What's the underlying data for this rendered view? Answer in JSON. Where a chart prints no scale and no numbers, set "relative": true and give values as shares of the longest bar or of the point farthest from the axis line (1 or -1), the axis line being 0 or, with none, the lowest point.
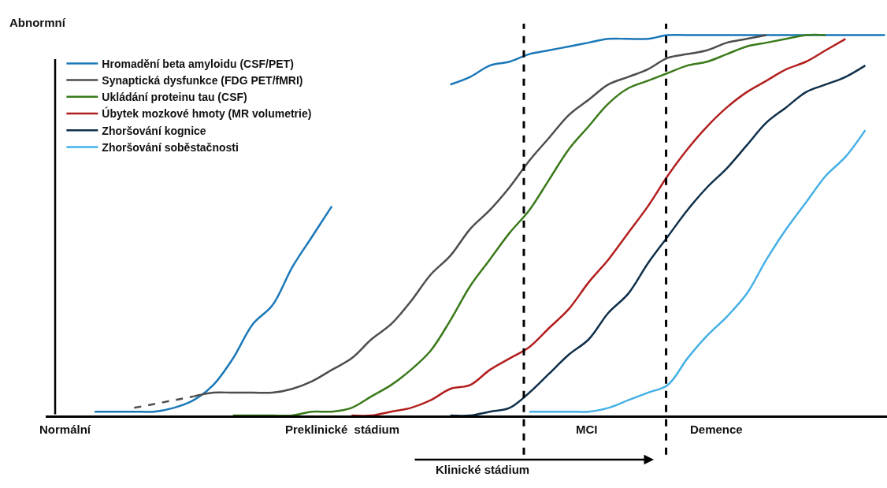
{
  "chart_data": {
    "type": "line",
    "relative": true,
    "ylabel": "Abnormní",
    "categories": [
      null,
      null,
      null,
      null,
      null,
      null,
      null,
      null,
      null,
      null,
      null,
      null,
      null,
      null,
      null,
      null,
      null,
      null,
      null,
      null,
      null,
      null,
      null,
      null,
      null,
      null,
      null,
      null,
      null,
      null,
      null,
      null,
      null,
      null,
      null,
      null,
      null,
      null,
      null,
      null,
      null,
      null,
      null
    ],
    "series": [
      {
        "name": "Hromadění beta amyloidu (CSF/PET)",
        "color": "#1a78b8",
        "values": [
          null,
          null,
          0.01,
          0.01,
          0.01,
          0.01,
          0.02,
          0.04,
          0.08,
          0.15,
          0.24,
          0.29,
          0.39,
          0.47,
          0.55,
          null,
          null,
          null,
          null,
          null,
          0.87,
          0.89,
          0.92,
          0.93,
          0.95,
          0.96,
          0.97,
          0.98,
          0.99,
          0.99,
          0.99,
          1.0,
          1.0,
          1.0,
          1.0,
          1.0,
          1.0,
          1.0,
          1.0,
          1.0,
          1.0,
          1.0,
          1.0
        ]
      },
      {
        "name": "Synaptická dysfunkce (FDG PET/fMRI)",
        "color": "#4d4d4f",
        "values": [
          null,
          null,
          null,
          null,
          null,
          null,
          null,
          0.05,
          0.06,
          0.06,
          0.06,
          0.06,
          0.07,
          0.09,
          0.12,
          0.15,
          0.2,
          0.24,
          0.3,
          0.37,
          0.42,
          0.49,
          0.54,
          0.6,
          0.67,
          0.73,
          0.79,
          0.83,
          0.87,
          0.89,
          0.91,
          0.94,
          0.95,
          0.96,
          0.98,
          0.99,
          1.0,
          null,
          null,
          null,
          null,
          null,
          null
        ]
      },
      {
        "name": "Ukládání proteinu tau (CSF)",
        "color": "#3a7a1a",
        "values": [
          null,
          null,
          null,
          null,
          null,
          null,
          null,
          null,
          null,
          0.0,
          0.0,
          0.0,
          0.0,
          0.01,
          0.01,
          0.02,
          0.05,
          0.08,
          0.12,
          0.17,
          0.25,
          0.34,
          0.41,
          0.48,
          0.54,
          0.62,
          0.7,
          0.76,
          0.82,
          0.86,
          0.88,
          0.9,
          0.92,
          0.93,
          0.95,
          0.97,
          0.98,
          0.99,
          1.0,
          1.0,
          null,
          null,
          null
        ]
      },
      {
        "name": "Úbytek mozkové hmoty (MR volumetrie)",
        "color": "#b21e1e",
        "values": [
          null,
          null,
          null,
          null,
          null,
          null,
          null,
          null,
          null,
          null,
          null,
          null,
          null,
          null,
          null,
          0.0,
          0.0,
          0.01,
          0.02,
          0.04,
          0.07,
          0.08,
          0.12,
          0.15,
          0.18,
          0.23,
          0.28,
          0.35,
          0.41,
          0.48,
          0.55,
          0.63,
          0.7,
          0.76,
          0.81,
          0.85,
          0.88,
          0.91,
          0.93,
          0.96,
          0.99,
          null,
          null
        ]
      },
      {
        "name": "Zhoršování kognice",
        "color": "#0f2f4a",
        "values": [
          null,
          null,
          null,
          null,
          null,
          null,
          null,
          null,
          null,
          null,
          null,
          null,
          null,
          null,
          null,
          null,
          null,
          null,
          null,
          null,
          0.0,
          0.0,
          0.01,
          0.02,
          0.06,
          0.11,
          0.16,
          0.2,
          0.27,
          0.32,
          0.4,
          0.47,
          0.54,
          0.6,
          0.65,
          0.71,
          0.77,
          0.81,
          0.85,
          0.87,
          0.89,
          0.92,
          null
        ]
      },
      {
        "name": "Zhoršování soběstačnosti",
        "color": "#45b0e6",
        "values": [
          null,
          null,
          null,
          null,
          null,
          null,
          null,
          null,
          null,
          null,
          null,
          null,
          null,
          null,
          null,
          null,
          null,
          null,
          null,
          null,
          null,
          null,
          null,
          null,
          0.01,
          0.01,
          0.01,
          0.01,
          0.02,
          0.04,
          0.06,
          0.08,
          0.15,
          0.21,
          0.26,
          0.32,
          0.41,
          0.49,
          0.56,
          0.63,
          0.68,
          0.75,
          null
        ]
      },
      {
        "color": "#4d4d4f",
        "line_style": "dashed",
        "values": [
          null,
          null,
          null,
          null,
          0.02,
          0.03,
          0.04,
          0.05,
          null,
          null,
          null,
          null,
          null,
          null,
          null,
          null,
          null,
          null,
          null,
          null,
          null,
          null,
          null,
          null,
          null,
          null,
          null,
          null,
          null,
          null,
          null,
          null,
          null,
          null,
          null,
          null,
          null,
          null,
          null,
          null,
          null,
          null,
          null
        ]
      }
    ],
    "annotations": [
      "Normální",
      "Preklinické  stádium",
      "MCI",
      "Demence",
      "Klinické stádium"
    ],
    "legend": "top left",
    "line_style": "solid",
    "marker": "none"
  }
}
